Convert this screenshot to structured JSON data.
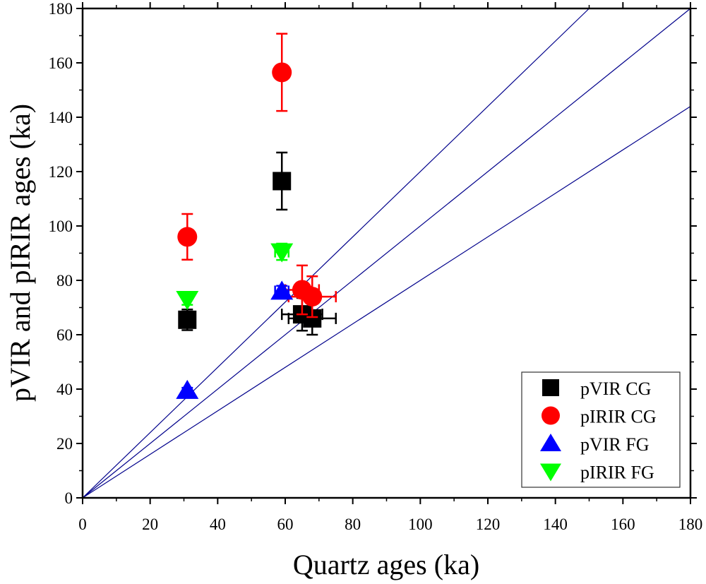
{
  "chart_data": {
    "type": "scatter",
    "xlabel": "Quartz ages (ka)",
    "ylabel": "pVIR and pIRIR ages (ka)",
    "xlim": [
      0,
      180
    ],
    "ylim": [
      0,
      180
    ],
    "xticks": [
      0,
      20,
      40,
      60,
      80,
      100,
      120,
      140,
      160,
      180
    ],
    "yticks": [
      0,
      20,
      40,
      60,
      80,
      100,
      120,
      140,
      160,
      180
    ],
    "grid": false,
    "legend_position": "bottom-right",
    "reference_lines": [
      {
        "slope": 1.2,
        "color": "#00008B"
      },
      {
        "slope": 1.0,
        "color": "#00008B"
      },
      {
        "slope": 0.8,
        "color": "#00008B"
      }
    ],
    "series": [
      {
        "name": "pVIR CG",
        "marker": "square",
        "color": "#000000",
        "points": [
          {
            "x": 31,
            "y": 65.5,
            "xerr": 0,
            "yerr": 3.8
          },
          {
            "x": 59,
            "y": 116.5,
            "xerr": 2,
            "yerr": 10.5
          },
          {
            "x": 65,
            "y": 67.5,
            "xerr": 6,
            "yerr": 6
          },
          {
            "x": 68,
            "y": 66,
            "xerr": 7,
            "yerr": 6
          }
        ]
      },
      {
        "name": "pIRIR CG",
        "marker": "circle",
        "color": "#FF0000",
        "points": [
          {
            "x": 31,
            "y": 96,
            "xerr": 0,
            "yerr": 8.4
          },
          {
            "x": 59,
            "y": 156.5,
            "xerr": 2,
            "yerr": 14.2
          },
          {
            "x": 65,
            "y": 76.5,
            "xerr": 5,
            "yerr": 9
          },
          {
            "x": 68,
            "y": 74,
            "xerr": 7,
            "yerr": 7.5
          }
        ]
      },
      {
        "name": "pVIR FG",
        "marker": "triangle-up",
        "color": "#0000FF",
        "points": [
          {
            "x": 31,
            "y": 39.5,
            "xerr": 0,
            "yerr": 1
          },
          {
            "x": 59,
            "y": 76,
            "xerr": 2,
            "yerr": 2
          }
        ]
      },
      {
        "name": "pIRIR FG",
        "marker": "triangle-down",
        "color": "#00FF00",
        "points": [
          {
            "x": 31,
            "y": 73,
            "xerr": 0,
            "yerr": 2
          },
          {
            "x": 59,
            "y": 90.5,
            "xerr": 2,
            "yerr": 3
          }
        ]
      }
    ]
  }
}
